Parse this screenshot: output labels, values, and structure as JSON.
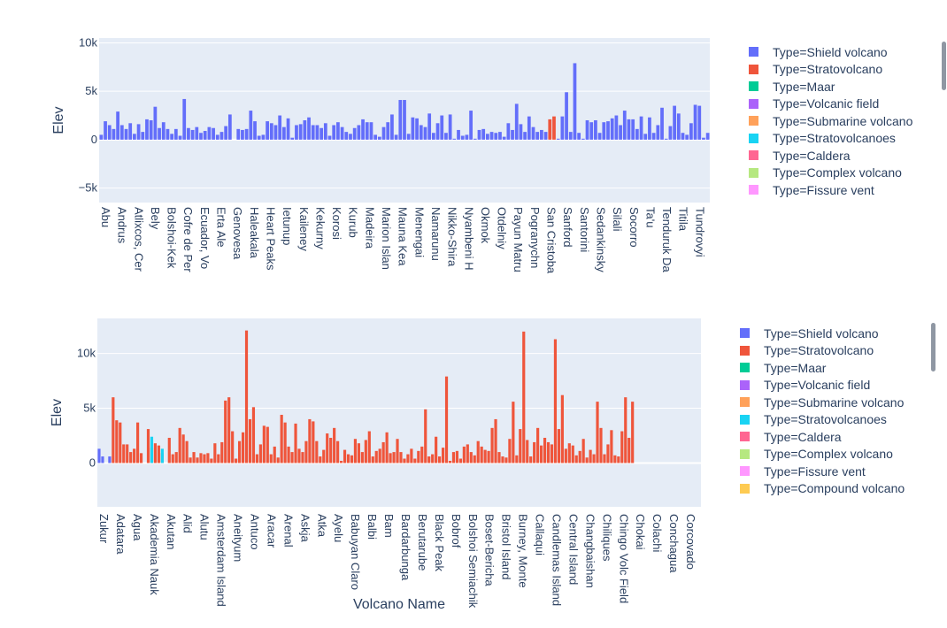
{
  "chart_data": [
    {
      "type": "bar",
      "ylabel": "Elev",
      "xlabel": "",
      "ylim": [
        -6500,
        10500
      ],
      "yticks": [
        10000,
        5000,
        0,
        -5000
      ],
      "ytick_labels": [
        "10k",
        "5k",
        "0",
        "−5k"
      ],
      "grid": true,
      "legend_position": "right",
      "legend": [
        {
          "name": "Type=Shield volcano",
          "color": "#636efa"
        },
        {
          "name": "Type=Stratovolcano",
          "color": "#EF553B"
        },
        {
          "name": "Type=Maar",
          "color": "#00cc96"
        },
        {
          "name": "Type=Volcanic field",
          "color": "#ab63fa"
        },
        {
          "name": "Type=Submarine volcano",
          "color": "#FFA15A"
        },
        {
          "name": "Type=Stratovolcanoes",
          "color": "#19d3f3"
        },
        {
          "name": "Type=Caldera",
          "color": "#FF6692"
        },
        {
          "name": "Type=Complex volcano",
          "color": "#B6E880"
        },
        {
          "name": "Type=Fissure vent",
          "color": "#FF97FF"
        }
      ],
      "tick_labels": [
        "Abu",
        "Andrus",
        "Atlixcos, Cer",
        "Bely",
        "Bolshoi-Kek",
        "Cofre de Per",
        "Ecuador, Vo",
        "Erta Ale",
        "Genovesa",
        "Haleakala",
        "Heart Peaks",
        "Ietunup",
        "Kaileney",
        "Kekurny",
        "Korosi",
        "Kurub",
        "Madeira",
        "Marion Islan",
        "Mauna Kea",
        "Menengai",
        "Namarunu",
        "Nikko-Shira",
        "Nyambeni H",
        "Okmok",
        "Otdelniy",
        "Payun Matru",
        "Pogranychn",
        "San Cristoba",
        "Sanford",
        "Santorini",
        "Sedankinsky",
        "Silali",
        "Socorro",
        "Ta'u",
        "Tenduruk Da",
        "Titila",
        "Tundrovyi"
      ],
      "series": [
        {
          "name": "Type=Shield volcano",
          "values": [
            500,
            1900,
            1500,
            1100,
            2900,
            1500,
            1100,
            1700,
            600,
            1600,
            800,
            2100,
            2000,
            3400,
            1200,
            1800,
            1100,
            600,
            1100,
            400,
            4200,
            1200,
            1000,
            1300,
            700,
            900,
            1300,
            1200,
            500,
            800,
            1400,
            2600,
            0,
            1100,
            1000,
            1100,
            3000,
            1900,
            400,
            500,
            1900,
            1700,
            1500,
            2500,
            1300,
            2200,
            200,
            1500,
            1600,
            2000,
            2300,
            1500,
            1500,
            1200,
            1700,
            400,
            1500,
            1800,
            1300,
            800,
            600,
            1200,
            1500,
            2100,
            1800,
            1800,
            500,
            300,
            1300,
            1800,
            2600,
            500,
            4100,
            4100,
            600,
            2300,
            2200,
            1500,
            1300,
            2700,
            700,
            1700,
            2500,
            700,
            2600,
            100,
            1000,
            400,
            500,
            3000,
            100,
            1000,
            1100,
            600,
            800,
            700,
            800,
            300,
            1700,
            1000,
            3700,
            1600,
            800,
            2400,
            1300,
            800,
            1000,
            800,
            0,
            0,
            100,
            2400,
            4900,
            800,
            7900,
            700,
            100,
            2000,
            1800,
            2000,
            700,
            1800,
            1900,
            2200,
            2500,
            1500,
            3000,
            2100,
            2100,
            1100,
            2400,
            600,
            2300,
            700,
            1500,
            3300,
            100,
            1400,
            3500,
            2700,
            700,
            500,
            1700,
            3600,
            3500,
            200,
            700
          ]
        },
        {
          "name": "Type=Stratovolcano",
          "values": [
            0,
            0,
            0,
            0,
            0,
            0,
            0,
            0,
            0,
            0,
            0,
            0,
            0,
            0,
            0,
            0,
            0,
            0,
            0,
            0,
            0,
            0,
            0,
            0,
            0,
            0,
            0,
            0,
            0,
            0,
            0,
            0,
            0,
            0,
            0,
            0,
            0,
            0,
            0,
            0,
            0,
            0,
            0,
            0,
            0,
            0,
            0,
            0,
            0,
            0,
            0,
            0,
            0,
            0,
            0,
            0,
            0,
            0,
            0,
            0,
            0,
            0,
            0,
            0,
            0,
            0,
            0,
            0,
            0,
            0,
            0,
            0,
            0,
            0,
            0,
            0,
            0,
            0,
            0,
            0,
            0,
            0,
            0,
            0,
            0,
            0,
            0,
            0,
            0,
            0,
            0,
            0,
            0,
            0,
            0,
            0,
            0,
            0,
            0,
            0,
            0,
            0,
            0,
            0,
            0,
            0,
            0,
            0,
            2100,
            2400,
            0,
            0,
            0,
            0,
            0,
            0,
            0,
            0,
            0,
            0,
            0,
            0,
            0,
            0,
            0,
            0,
            0,
            0,
            0,
            0,
            0,
            0,
            0,
            0,
            0,
            0,
            0,
            0,
            0,
            0,
            0,
            0,
            0,
            0,
            0,
            0,
            0
          ]
        }
      ]
    },
    {
      "type": "bar",
      "ylabel": "Elev",
      "xlabel": "Volcano Name",
      "ylim": [
        -4000,
        13200
      ],
      "yticks": [
        10000,
        5000,
        0
      ],
      "ytick_labels": [
        "10k",
        "5k",
        "0"
      ],
      "grid": true,
      "legend_position": "right",
      "legend": [
        {
          "name": "Type=Shield volcano",
          "color": "#636efa"
        },
        {
          "name": "Type=Stratovolcano",
          "color": "#EF553B"
        },
        {
          "name": "Type=Maar",
          "color": "#00cc96"
        },
        {
          "name": "Type=Volcanic field",
          "color": "#ab63fa"
        },
        {
          "name": "Type=Submarine volcano",
          "color": "#FFA15A"
        },
        {
          "name": "Type=Stratovolcanoes",
          "color": "#19d3f3"
        },
        {
          "name": "Type=Caldera",
          "color": "#FF6692"
        },
        {
          "name": "Type=Complex volcano",
          "color": "#B6E880"
        },
        {
          "name": "Type=Fissure vent",
          "color": "#FF97FF"
        },
        {
          "name": "Type=Compound volcano",
          "color": "#FECB52"
        }
      ],
      "tick_labels": [
        "Zukur",
        "Adatara",
        "Agua",
        "Akademia Nauk",
        "Akutan",
        "Alid",
        "Alutu",
        "Amsterdam Island",
        "Aneityum",
        "Antuco",
        "Aracar",
        "Arenal",
        "Askja",
        "Atka",
        "Ayelu",
        "Babuyan Claro",
        "Balbi",
        "Bam",
        "Bardarbunga",
        "Berutarube",
        "Black Peak",
        "Bobrof",
        "Bolshoi Semiachik",
        "Boset-Bericha",
        "Bristol Island",
        "Burney, Monte",
        "Callaqui",
        "Candlemas Island",
        "Central Island",
        "Changbaishan",
        "Chiliques",
        "Chingo Volc Field",
        "Chokai",
        "Colachi",
        "Conchagua",
        "Corcovado"
      ],
      "series": [
        {
          "name": "Type=Shield volcano",
          "values": [
            1300,
            600,
            0,
            600,
            0,
            0,
            0,
            0,
            0,
            0,
            0,
            0,
            0,
            0,
            0,
            0,
            0,
            0,
            0,
            0,
            0,
            0,
            0,
            0,
            0,
            0,
            0,
            0,
            0,
            0,
            0,
            0,
            0,
            0,
            0,
            0,
            0,
            0,
            0,
            0,
            0,
            0,
            0,
            0,
            0,
            0,
            0,
            0,
            0,
            0,
            0,
            0,
            0,
            0,
            0,
            0,
            0,
            0,
            0,
            0,
            0,
            0,
            0,
            0,
            0,
            0,
            0,
            0,
            0,
            0,
            0,
            0,
            0,
            0,
            0,
            0,
            0,
            0,
            0,
            0,
            0,
            0,
            0,
            0,
            0,
            0,
            0,
            0,
            0,
            0,
            0,
            0,
            0,
            0,
            0,
            0,
            0,
            0,
            0,
            0,
            0,
            0,
            0,
            0,
            0,
            0,
            0,
            0,
            0,
            0,
            0,
            0,
            0,
            0,
            0,
            0,
            0,
            0,
            0,
            0,
            0,
            0,
            0,
            0,
            0,
            0,
            0,
            0,
            0,
            0,
            0,
            0,
            0,
            0,
            0,
            0,
            0,
            0,
            0,
            0,
            0,
            0,
            0,
            0,
            0,
            0,
            0,
            0,
            0,
            0,
            0,
            0,
            0,
            0,
            0,
            0,
            0,
            0,
            0,
            0,
            0,
            0,
            0,
            0,
            0,
            0,
            0,
            0,
            0,
            0,
            0,
            0
          ]
        },
        {
          "name": "Type=Stratovolcano",
          "values": [
            0,
            0,
            0,
            0,
            6000,
            3900,
            3700,
            1700,
            1700,
            1000,
            1300,
            3700,
            900,
            0,
            3100,
            1400,
            1800,
            1600,
            900,
            0,
            2300,
            800,
            1000,
            3200,
            2600,
            2000,
            500,
            1000,
            500,
            900,
            800,
            900,
            400,
            1800,
            800,
            1900,
            5700,
            6000,
            2900,
            400,
            2000,
            2800,
            12100,
            4000,
            5100,
            800,
            1700,
            3400,
            3300,
            800,
            1500,
            500,
            4400,
            3700,
            1500,
            1000,
            3600,
            1300,
            1000,
            2000,
            4000,
            3800,
            2000,
            600,
            1200,
            2700,
            2300,
            3200,
            2000,
            200,
            1200,
            800,
            700,
            2200,
            1800,
            1000,
            2100,
            2900,
            600,
            1100,
            1300,
            1900,
            2800,
            900,
            1000,
            2200,
            1000,
            400,
            800,
            1300,
            400,
            1100,
            1500,
            4900,
            600,
            800,
            2400,
            600,
            1400,
            7900,
            200,
            1000,
            1100,
            400,
            1500,
            1700,
            1000,
            700,
            2000,
            1500,
            1200,
            1100,
            3200,
            4000,
            1000,
            600,
            500,
            2200,
            5600,
            700,
            3100,
            12000,
            2100,
            600,
            1900,
            3200,
            1600,
            2300,
            1900,
            1700,
            11300,
            3100,
            6200,
            1300,
            1800,
            1600,
            700,
            1100,
            2200,
            500,
            1200,
            800,
            5600,
            3200,
            800,
            1700,
            3000,
            700,
            600,
            2900,
            6000,
            2300,
            5600
          ]
        },
        {
          "name": "Type=Stratovolcanoes",
          "values": [
            0,
            0,
            0,
            0,
            0,
            0,
            0,
            0,
            0,
            0,
            0,
            0,
            0,
            0,
            0,
            2400,
            0,
            0,
            1300,
            0,
            0,
            0,
            0,
            0,
            0,
            0,
            0,
            0,
            0,
            0,
            0,
            0,
            0,
            0,
            0,
            0,
            0,
            0,
            0,
            0,
            0,
            0,
            0,
            0,
            0,
            0,
            0,
            0,
            0,
            0,
            0,
            0,
            0,
            0,
            0,
            0,
            0,
            0,
            0,
            0,
            0,
            0,
            0,
            0,
            0,
            0,
            0,
            0,
            0,
            0,
            0,
            0,
            0,
            0,
            0,
            0,
            0,
            0,
            0,
            0,
            0,
            0,
            0,
            0,
            0,
            0,
            0,
            0,
            0,
            0,
            0,
            0,
            0,
            0,
            0,
            0,
            0,
            0,
            0,
            0,
            0,
            0,
            0,
            0,
            0,
            0,
            0,
            0,
            0,
            0,
            0,
            0,
            0,
            0,
            0,
            0,
            0,
            0,
            0,
            0,
            0,
            0,
            0,
            0,
            0,
            0,
            0,
            0,
            0,
            0,
            0,
            0,
            0,
            0,
            0,
            0,
            0,
            0,
            0,
            0,
            0,
            0,
            0,
            0,
            0,
            0,
            0,
            0,
            0,
            0,
            0,
            0,
            0,
            0,
            0,
            0,
            0,
            0,
            0,
            0,
            0,
            0,
            0,
            0,
            0,
            0,
            0,
            0,
            0,
            0,
            0,
            0
          ]
        },
        {
          "name": "Type=Caldera",
          "values": [
            0,
            0,
            0,
            0,
            0,
            0,
            0,
            0,
            0,
            0,
            0,
            0,
            0,
            0,
            0,
            0,
            0,
            0,
            0,
            0,
            0,
            0,
            0,
            0,
            0,
            0,
            0,
            0,
            0,
            0,
            0,
            0,
            0,
            0,
            0,
            0,
            0,
            0,
            0,
            0,
            0,
            0,
            0,
            0,
            0,
            0,
            0,
            0,
            0,
            0,
            0,
            0,
            0,
            0,
            0,
            0,
            0,
            0,
            0,
            0,
            0,
            0,
            0,
            0,
            0,
            0,
            0,
            0,
            0,
            0,
            0,
            0,
            0,
            0,
            0,
            0,
            0,
            0,
            0,
            0,
            0,
            0,
            0,
            0,
            0,
            0,
            0,
            0,
            0,
            0,
            0,
            0,
            0,
            0,
            0,
            0,
            0,
            0,
            0,
            0,
            0,
            0,
            0,
            0,
            0,
            0,
            0,
            0,
            0,
            0,
            0,
            0,
            0,
            0,
            0,
            0,
            0,
            0,
            0,
            0,
            0,
            0,
            0,
            0,
            0,
            0,
            0,
            0,
            0,
            0,
            0,
            0,
            0,
            0,
            0,
            0,
            0,
            0,
            0,
            0,
            0,
            0,
            0,
            0,
            0,
            0,
            0,
            0,
            0,
            0,
            0,
            0,
            0,
            0,
            0,
            0,
            0,
            0,
            0,
            0,
            0,
            0,
            0,
            0,
            0,
            0,
            0,
            0,
            0,
            0,
            0,
            0,
            0,
            0
          ]
        }
      ]
    }
  ]
}
